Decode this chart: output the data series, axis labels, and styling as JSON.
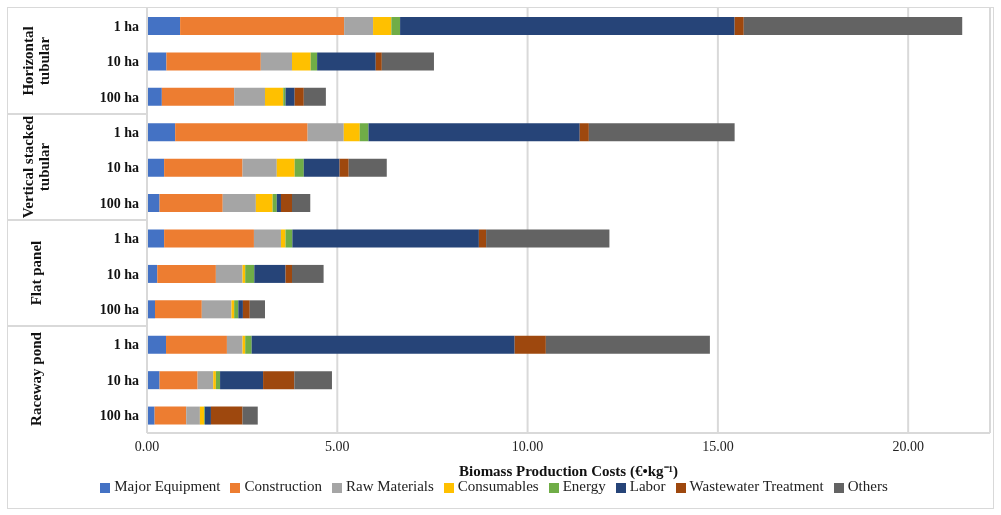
{
  "chart_data": {
    "type": "bar",
    "orientation": "horizontal",
    "stacked": true,
    "xlabel": "Biomass Production Costs (€•kg⁻¹)",
    "categories": [
      "1 ha",
      "10 ha",
      "100 ha",
      "1 ha",
      "10 ha",
      "100 ha",
      "1 ha",
      "10 ha",
      "100 ha",
      "1 ha",
      "10 ha",
      "100 ha"
    ],
    "annotations": [
      "Horizontal tubular",
      "Vertical stacked tubular",
      "Flat panel",
      "Raceway pond"
    ],
    "series": [
      {
        "name": "Major Equipment",
        "color": "#4472c4",
        "values": [
          0.87,
          0.51,
          0.39,
          0.74,
          0.45,
          0.33,
          0.45,
          0.27,
          0.21,
          0.5,
          0.33,
          0.2
        ]
      },
      {
        "name": "Construction",
        "color": "#ed7d31",
        "values": [
          4.31,
          2.48,
          1.9,
          3.48,
          2.06,
          1.66,
          2.36,
          1.54,
          1.23,
          1.6,
          1.0,
          0.83
        ]
      },
      {
        "name": "Raw Materials",
        "color": "#a5a5a5",
        "values": [
          0.76,
          0.82,
          0.81,
          0.95,
          0.9,
          0.87,
          0.71,
          0.7,
          0.78,
          0.41,
          0.41,
          0.36
        ]
      },
      {
        "name": "Consumables",
        "color": "#ffc000",
        "values": [
          0.48,
          0.49,
          0.48,
          0.42,
          0.47,
          0.44,
          0.12,
          0.07,
          0.07,
          0.07,
          0.07,
          0.11
        ]
      },
      {
        "name": "Energy",
        "color": "#70ad47",
        "values": [
          0.23,
          0.17,
          0.06,
          0.23,
          0.24,
          0.11,
          0.18,
          0.24,
          0.11,
          0.17,
          0.11,
          0.02
        ]
      },
      {
        "name": "Labor",
        "color": "#264478",
        "values": [
          8.79,
          1.54,
          0.24,
          5.55,
          0.94,
          0.11,
          4.9,
          0.82,
          0.12,
          6.91,
          1.13,
          0.16
        ]
      },
      {
        "name": "Wastewater Treatment",
        "color": "#9e480e",
        "values": [
          0.24,
          0.16,
          0.24,
          0.24,
          0.24,
          0.29,
          0.19,
          0.17,
          0.18,
          0.82,
          0.82,
          0.83
        ]
      },
      {
        "name": "Others",
        "color": "#636363",
        "values": [
          5.74,
          1.37,
          0.58,
          3.83,
          1.0,
          0.48,
          3.24,
          0.83,
          0.4,
          4.31,
          0.99,
          0.4
        ]
      }
    ],
    "xlim": [
      0,
      22.15
    ],
    "xticks": [
      {
        "value": 0,
        "label": "0.00"
      },
      {
        "value": 5,
        "label": "5.00"
      },
      {
        "value": 10,
        "label": "10.00"
      },
      {
        "value": 15,
        "label": "15.00"
      },
      {
        "value": 20,
        "label": "20.00"
      }
    ],
    "grid": "x",
    "legend": "bottom"
  }
}
